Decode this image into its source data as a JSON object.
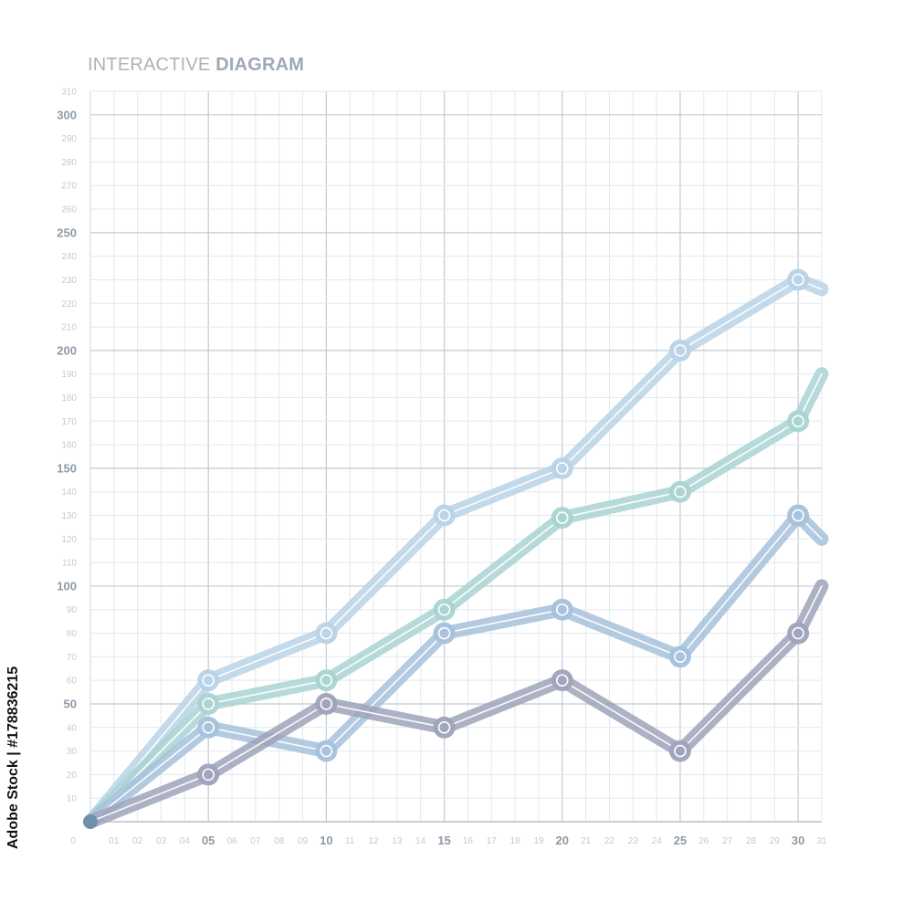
{
  "title": {
    "light": "INTERACTIVE ",
    "bold": "DIAGRAM"
  },
  "credit": "Adobe Stock | #178836215",
  "chart_data": {
    "type": "line",
    "title": "INTERACTIVE DIAGRAM",
    "xlabel": "",
    "ylabel": "",
    "xlim": [
      0,
      31
    ],
    "ylim": [
      0,
      310
    ],
    "grid": true,
    "x_tick_labels": [
      "0",
      "01",
      "02",
      "03",
      "04",
      "05",
      "06",
      "07",
      "08",
      "09",
      "10",
      "11",
      "12",
      "13",
      "14",
      "15",
      "16",
      "17",
      "18",
      "19",
      "20",
      "21",
      "22",
      "23",
      "24",
      "25",
      "26",
      "27",
      "28",
      "29",
      "30",
      "31"
    ],
    "x_major_ticks": [
      5,
      10,
      15,
      20,
      25,
      30
    ],
    "y_ticks": [
      10,
      20,
      30,
      40,
      50,
      60,
      70,
      80,
      90,
      100,
      110,
      120,
      130,
      140,
      150,
      160,
      170,
      180,
      190,
      200,
      210,
      220,
      230,
      240,
      250,
      260,
      270,
      280,
      290,
      300,
      310
    ],
    "y_major_ticks": [
      50,
      100,
      150,
      200,
      250,
      300
    ],
    "series": [
      {
        "color": "#b9d3e6",
        "x": [
          0,
          5,
          10,
          15,
          20,
          25,
          30,
          31
        ],
        "values": [
          0,
          60,
          80,
          130,
          150,
          200,
          230,
          226
        ]
      },
      {
        "color": "#a9d4d2",
        "x": [
          0,
          5,
          10,
          15,
          20,
          25,
          30,
          31
        ],
        "values": [
          0,
          50,
          60,
          90,
          129,
          140,
          170,
          190
        ]
      },
      {
        "color": "#a6c1dc",
        "x": [
          0,
          5,
          10,
          15,
          20,
          25,
          30,
          31
        ],
        "values": [
          0,
          40,
          30,
          80,
          90,
          70,
          130,
          120
        ]
      },
      {
        "color": "#9ea3ba",
        "x": [
          0,
          5,
          10,
          15,
          20,
          25,
          30,
          31
        ],
        "values": [
          0,
          20,
          50,
          40,
          60,
          30,
          80,
          100
        ]
      }
    ]
  }
}
